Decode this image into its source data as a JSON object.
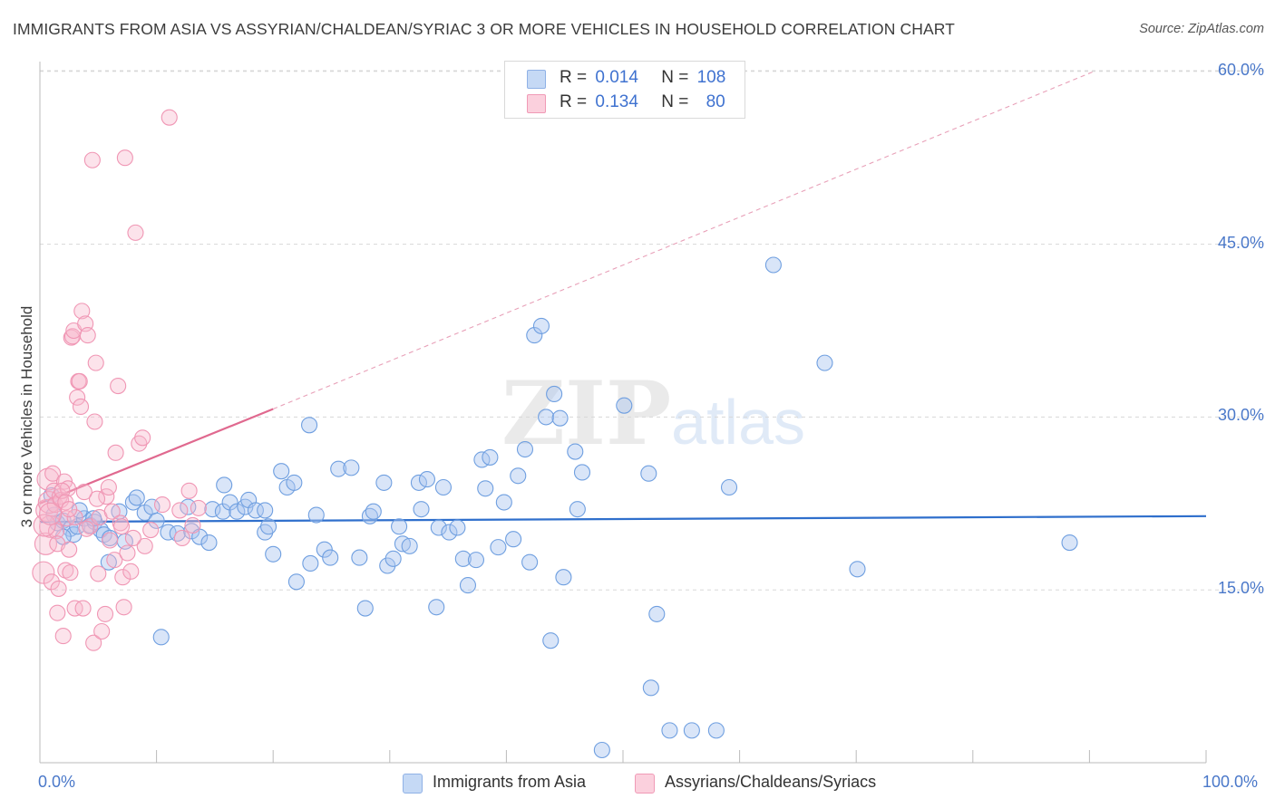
{
  "title": "IMMIGRANTS FROM ASIA VS ASSYRIAN/CHALDEAN/SYRIAC 3 OR MORE VEHICLES IN HOUSEHOLD CORRELATION CHART",
  "source": "Source: ZipAtlas.com",
  "watermark": {
    "zip": "ZIP",
    "atlas": "atlas"
  },
  "legend": {
    "rows": [
      {
        "r_label": "R =",
        "r_value": "0.014",
        "n_label": "N =",
        "n_value": "108",
        "color": "#aac6f0"
      },
      {
        "r_label": "R =",
        "r_value": "0.134",
        "n_label": "N =",
        "n_value": "80",
        "color": "#f7b8cc"
      }
    ]
  },
  "bottom_legend": [
    "Immigrants from Asia",
    "Assyrians/Chaldeans/Syriacs"
  ],
  "chart_data": {
    "type": "scatter",
    "title": "IMMIGRANTS FROM ASIA VS ASSYRIAN/CHALDEAN/SYRIAC 3 OR MORE VEHICLES IN HOUSEHOLD CORRELATION CHART",
    "xlabel": "",
    "ylabel": "3 or more Vehicles in Household",
    "xlim": [
      0,
      100
    ],
    "ylim": [
      0,
      61.5
    ],
    "x_tick_labels": [
      "0.0%",
      "100.0%"
    ],
    "y_ticks": [
      15,
      30,
      45,
      60
    ],
    "y_tick_labels": [
      "15.0%",
      "30.0%",
      "45.0%",
      "60.0%"
    ],
    "grid": true,
    "legend_position": "top-center",
    "series": [
      {
        "name": "Immigrants from Asia",
        "color": "#6f9fe0",
        "trend": {
          "x": [
            0,
            100
          ],
          "y": [
            20.9,
            21.4
          ],
          "color": "#2f6fcc"
        },
        "points": [
          [
            1.2,
            21.5
          ],
          [
            1.5,
            20.8
          ],
          [
            2.0,
            21.0
          ],
          [
            2.6,
            20.3
          ],
          [
            2.9,
            19.8
          ],
          [
            3.2,
            20.5
          ],
          [
            3.8,
            21.2
          ],
          [
            4.3,
            20.6
          ],
          [
            4.7,
            20.9
          ],
          [
            5.2,
            20.2
          ],
          [
            5.5,
            19.8
          ],
          [
            5.9,
            17.4
          ],
          [
            7.3,
            19.2
          ],
          [
            6.8,
            21.8
          ],
          [
            8.0,
            22.6
          ],
          [
            8.3,
            23.0
          ],
          [
            9.0,
            21.7
          ],
          [
            9.6,
            22.2
          ],
          [
            10.0,
            21.0
          ],
          [
            11.0,
            20.0
          ],
          [
            11.8,
            19.9
          ],
          [
            12.7,
            22.2
          ],
          [
            13.0,
            20.1
          ],
          [
            13.7,
            19.6
          ],
          [
            14.5,
            19.1
          ],
          [
            14.8,
            22.0
          ],
          [
            15.7,
            21.8
          ],
          [
            15.8,
            24.1
          ],
          [
            16.3,
            22.6
          ],
          [
            16.9,
            21.8
          ],
          [
            17.6,
            22.2
          ],
          [
            17.9,
            22.8
          ],
          [
            18.5,
            21.9
          ],
          [
            19.3,
            21.9
          ],
          [
            19.3,
            20.0
          ],
          [
            19.6,
            20.5
          ],
          [
            20.0,
            18.1
          ],
          [
            20.7,
            25.3
          ],
          [
            21.2,
            23.9
          ],
          [
            21.8,
            24.3
          ],
          [
            22.0,
            15.7
          ],
          [
            23.1,
            29.3
          ],
          [
            23.2,
            17.3
          ],
          [
            23.7,
            21.5
          ],
          [
            24.4,
            18.5
          ],
          [
            24.9,
            17.8
          ],
          [
            25.6,
            25.5
          ],
          [
            26.7,
            25.6
          ],
          [
            27.4,
            17.8
          ],
          [
            27.9,
            13.4
          ],
          [
            28.3,
            21.4
          ],
          [
            28.6,
            21.8
          ],
          [
            29.5,
            24.3
          ],
          [
            29.8,
            17.1
          ],
          [
            30.3,
            17.7
          ],
          [
            30.8,
            20.5
          ],
          [
            31.1,
            19.0
          ],
          [
            31.7,
            18.8
          ],
          [
            32.5,
            24.3
          ],
          [
            32.7,
            22.0
          ],
          [
            33.2,
            24.6
          ],
          [
            34.0,
            13.5
          ],
          [
            34.2,
            20.4
          ],
          [
            34.6,
            23.9
          ],
          [
            35.1,
            20.0
          ],
          [
            35.8,
            20.4
          ],
          [
            36.3,
            17.7
          ],
          [
            36.7,
            15.4
          ],
          [
            37.4,
            17.6
          ],
          [
            37.9,
            26.3
          ],
          [
            38.2,
            23.8
          ],
          [
            38.6,
            26.5
          ],
          [
            39.3,
            18.7
          ],
          [
            39.8,
            22.6
          ],
          [
            40.6,
            19.4
          ],
          [
            41.0,
            24.9
          ],
          [
            41.6,
            27.2
          ],
          [
            42.0,
            17.4
          ],
          [
            42.4,
            37.1
          ],
          [
            43.0,
            37.9
          ],
          [
            43.4,
            30.0
          ],
          [
            43.8,
            10.6
          ],
          [
            44.1,
            32.0
          ],
          [
            44.6,
            29.9
          ],
          [
            44.9,
            16.1
          ],
          [
            45.9,
            27.0
          ],
          [
            46.1,
            22.0
          ],
          [
            46.5,
            25.2
          ],
          [
            48.2,
            1.1
          ],
          [
            50.1,
            31.0
          ],
          [
            52.2,
            25.1
          ],
          [
            52.4,
            6.5
          ],
          [
            52.9,
            12.9
          ],
          [
            54.0,
            2.8
          ],
          [
            55.9,
            2.8
          ],
          [
            58.0,
            2.8
          ],
          [
            59.1,
            23.9
          ],
          [
            62.9,
            43.2
          ],
          [
            67.3,
            34.7
          ],
          [
            70.1,
            16.8
          ],
          [
            88.3,
            19.1
          ],
          [
            10.4,
            10.9
          ],
          [
            2.0,
            19.6
          ],
          [
            4.6,
            21.2
          ],
          [
            6.0,
            19.5
          ],
          [
            1.0,
            23.2
          ],
          [
            3.4,
            21.9
          ]
        ]
      },
      {
        "name": "Assyrians/Chaldeans/Syriacs",
        "color": "#f096b4",
        "trend": {
          "x": [
            0,
            20
          ],
          "y": [
            22.5,
            30.7
          ],
          "dash_to": [
            100,
            64.0
          ],
          "color": "#e0698f"
        },
        "points": [
          [
            0.3,
            16.5
          ],
          [
            0.5,
            19.0
          ],
          [
            0.6,
            21.9
          ],
          [
            0.7,
            24.6
          ],
          [
            0.8,
            22.6
          ],
          [
            0.9,
            20.5
          ],
          [
            1.0,
            15.7
          ],
          [
            1.1,
            25.1
          ],
          [
            1.2,
            23.6
          ],
          [
            1.3,
            22.4
          ],
          [
            1.4,
            20.1
          ],
          [
            1.5,
            19.0
          ],
          [
            1.6,
            15.1
          ],
          [
            1.7,
            23.1
          ],
          [
            1.8,
            22.8
          ],
          [
            2.0,
            11.0
          ],
          [
            2.1,
            24.4
          ],
          [
            2.2,
            16.7
          ],
          [
            2.3,
            21.2
          ],
          [
            2.4,
            23.8
          ],
          [
            2.5,
            18.5
          ],
          [
            2.6,
            16.5
          ],
          [
            2.7,
            36.9
          ],
          [
            2.8,
            37.0
          ],
          [
            2.9,
            37.5
          ],
          [
            3.0,
            13.4
          ],
          [
            3.2,
            31.7
          ],
          [
            3.3,
            33.1
          ],
          [
            3.4,
            33.1
          ],
          [
            3.5,
            30.9
          ],
          [
            3.6,
            39.2
          ],
          [
            3.7,
            13.4
          ],
          [
            3.9,
            38.1
          ],
          [
            4.1,
            37.1
          ],
          [
            4.3,
            20.5
          ],
          [
            4.5,
            52.3
          ],
          [
            4.6,
            10.4
          ],
          [
            4.7,
            29.6
          ],
          [
            4.8,
            34.7
          ],
          [
            5.0,
            16.4
          ],
          [
            5.1,
            21.3
          ],
          [
            5.3,
            11.4
          ],
          [
            5.6,
            12.9
          ],
          [
            5.7,
            23.1
          ],
          [
            5.9,
            23.9
          ],
          [
            6.2,
            21.8
          ],
          [
            6.4,
            17.6
          ],
          [
            6.5,
            26.9
          ],
          [
            6.7,
            32.7
          ],
          [
            6.9,
            20.8
          ],
          [
            7.1,
            16.1
          ],
          [
            7.2,
            13.5
          ],
          [
            7.3,
            52.5
          ],
          [
            7.5,
            18.2
          ],
          [
            7.8,
            16.6
          ],
          [
            8.2,
            46.0
          ],
          [
            8.5,
            27.7
          ],
          [
            8.8,
            28.2
          ],
          [
            9.0,
            18.8
          ],
          [
            11.1,
            56.0
          ],
          [
            12.0,
            21.9
          ],
          [
            12.2,
            19.5
          ],
          [
            12.8,
            23.6
          ],
          [
            13.1,
            20.6
          ],
          [
            13.6,
            22.1
          ],
          [
            0.4,
            20.6
          ],
          [
            0.9,
            21.6
          ],
          [
            1.9,
            23.6
          ],
          [
            2.2,
            22.6
          ],
          [
            3.0,
            21.3
          ],
          [
            4.0,
            20.3
          ],
          [
            4.9,
            22.9
          ],
          [
            6.0,
            19.3
          ],
          [
            7.0,
            20.5
          ],
          [
            8.0,
            19.5
          ],
          [
            9.5,
            20.2
          ],
          [
            10.5,
            22.4
          ],
          [
            1.5,
            13.0
          ],
          [
            2.5,
            22.0
          ],
          [
            3.8,
            23.5
          ]
        ]
      }
    ]
  }
}
